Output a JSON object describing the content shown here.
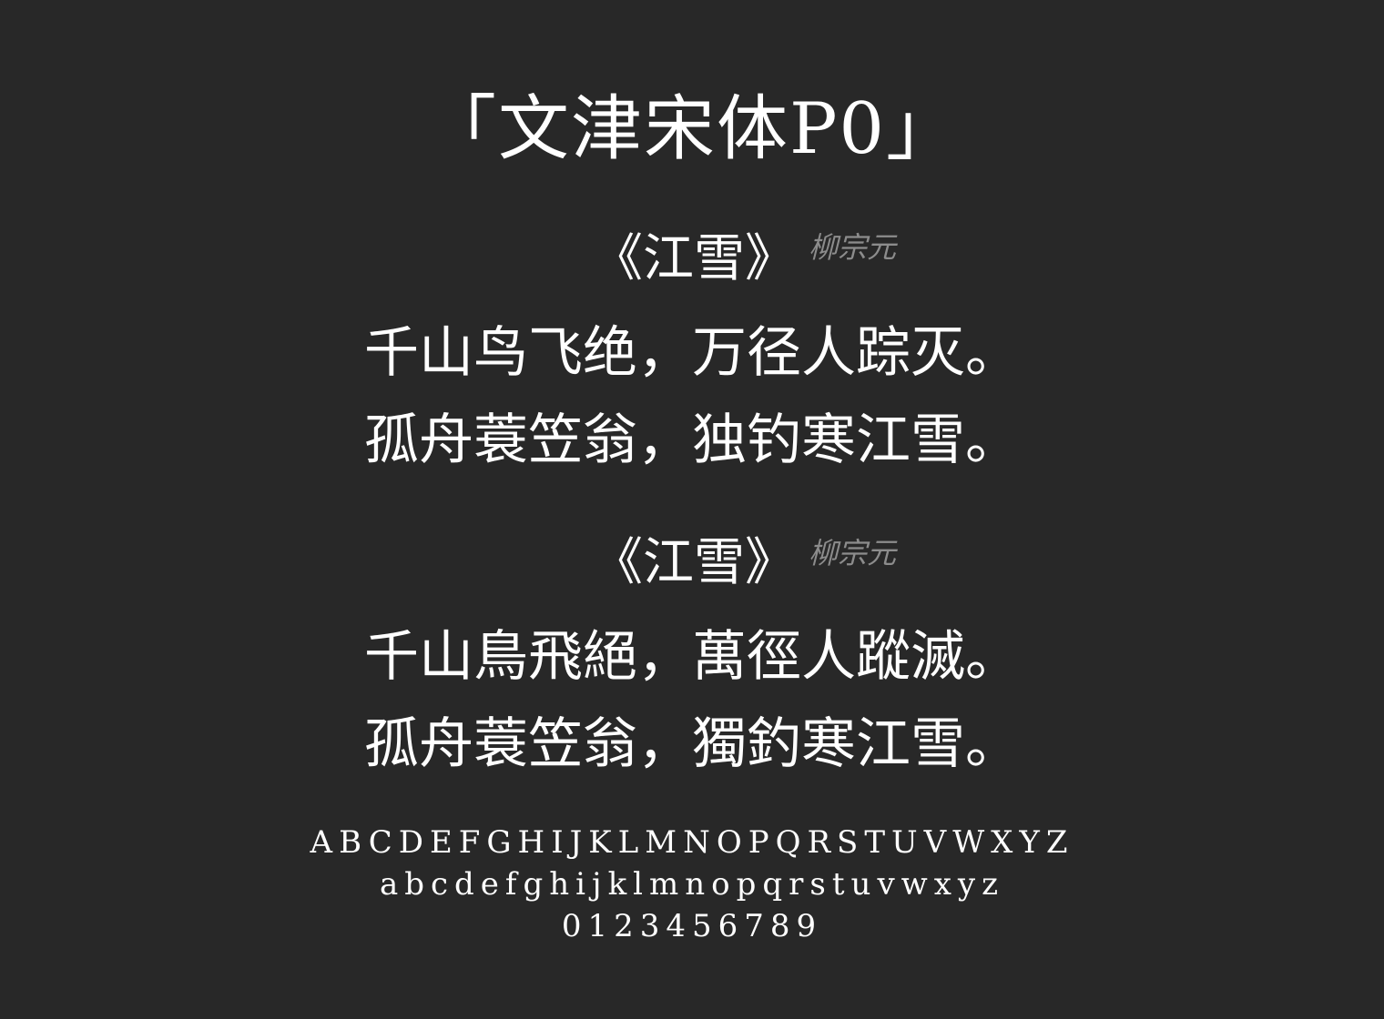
{
  "title": "「文津宋体P0」",
  "poems": [
    {
      "title": "《江雪》",
      "author": "柳宗元",
      "lines": [
        "千山鸟飞绝，万径人踪灭。",
        "孤舟蓑笠翁，独钓寒江雪。"
      ]
    },
    {
      "title": "《江雪》",
      "author": "柳宗元",
      "lines": [
        "千山鳥飛絕，萬徑人蹤滅。",
        "孤舟蓑笠翁，獨釣寒江雪。"
      ]
    }
  ],
  "alphabet": {
    "uppercase": "ABCDEFGHIJKLMNOPQRSTUVWXYZ",
    "lowercase": "abcdefghijklmnopqrstuvwxyz",
    "digits": "0123456789"
  },
  "colors": {
    "background": "#282828",
    "text": "#ffffff",
    "author": "#8c8c8c"
  }
}
